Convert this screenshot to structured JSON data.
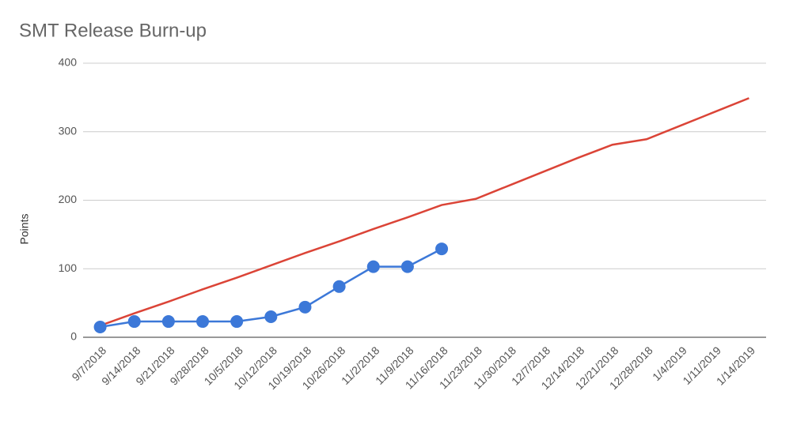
{
  "chart_data": {
    "type": "line",
    "title": "SMT Release Burn-up",
    "y_label": "Points",
    "categories": [
      "9/7/2018",
      "9/14/2018",
      "9/21/2018",
      "9/28/2018",
      "10/5/2018",
      "10/12/2018",
      "10/19/2018",
      "10/26/2018",
      "11/2/2018",
      "11/9/2018",
      "11/16/2018",
      "11/23/2018",
      "11/30/2018",
      "12/7/2018",
      "12/14/2018",
      "12/21/2018",
      "12/28/2018",
      "1/4/2019",
      "1/11/2019",
      "1/14/2019"
    ],
    "series": [
      {
        "color": "#db4437",
        "markers": false,
        "values": [
          17,
          35,
          52,
          70,
          87,
          105,
          123,
          140,
          158,
          175,
          193,
          202,
          222,
          242,
          262,
          281,
          289,
          309,
          329,
          349
        ]
      },
      {
        "color": "#3c78d8",
        "markers": true,
        "values": [
          15,
          23,
          23,
          23,
          23,
          30,
          44,
          74,
          103,
          103,
          129,
          null,
          null,
          null,
          null,
          null,
          null,
          null,
          null,
          null
        ]
      }
    ],
    "ylim": [
      0,
      400
    ],
    "yticks": [
      0,
      100,
      200,
      300,
      400
    ],
    "grid": true
  }
}
